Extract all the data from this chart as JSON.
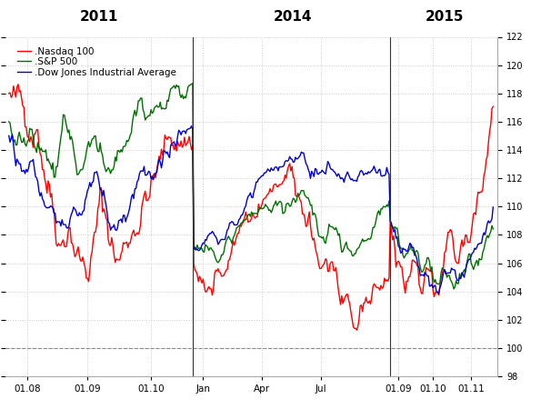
{
  "title_2011": "2011",
  "title_2014": "2014",
  "title_2015": "2015",
  "legend_labels": [
    ".Nasdaq 100",
    ".S&P 500",
    ".Dow Jones Industrial Average"
  ],
  "colors": {
    "nasdaq": "#ff0000",
    "sp500": "#007000",
    "dow": "#0000cc"
  },
  "ylim": [
    98,
    122
  ],
  "yticks": [
    98,
    100,
    102,
    104,
    106,
    108,
    110,
    112,
    114,
    116,
    118,
    120,
    122
  ],
  "dashed_line_y": 100,
  "bg_color": "#ffffff",
  "grid_color": "#cccccc",
  "linewidth": 1.0,
  "n1": 160,
  "n2": 170,
  "n3": 90
}
